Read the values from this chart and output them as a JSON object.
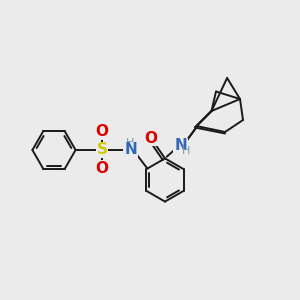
{
  "bg_color": "#ebebeb",
  "bond_color": "#1a1a1a",
  "bond_width": 1.4,
  "S_color": "#cccc00",
  "O_color": "#dd0000",
  "N_color": "#3366bb",
  "H_color": "#7799aa",
  "figsize": [
    3.0,
    3.0
  ],
  "dpi": 100,
  "xlim": [
    0,
    10
  ],
  "ylim": [
    0,
    10
  ]
}
